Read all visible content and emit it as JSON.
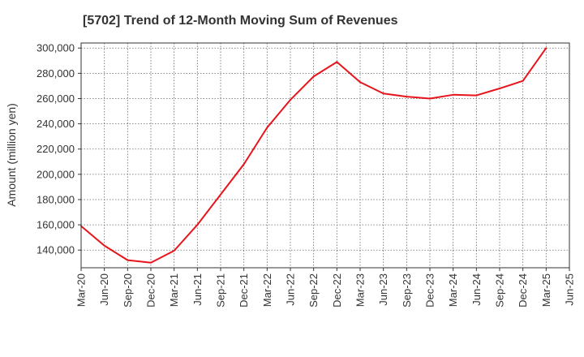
{
  "chart_data": {
    "type": "line",
    "title": "[5702]  Trend of 12-Month Moving Sum of Revenues",
    "xlabel": "",
    "ylabel": "Amount (million yen)",
    "ylim": [
      126000,
      304000
    ],
    "yticks": [
      140000,
      160000,
      180000,
      200000,
      220000,
      240000,
      260000,
      280000,
      300000
    ],
    "categories": [
      "Mar-20",
      "Jun-20",
      "Sep-20",
      "Dec-20",
      "Mar-21",
      "Jun-21",
      "Sep-21",
      "Dec-21",
      "Mar-22",
      "Jun-22",
      "Sep-22",
      "Dec-22",
      "Mar-23",
      "Jun-23",
      "Sep-23",
      "Dec-23",
      "Mar-24",
      "Jun-24",
      "Sep-24",
      "Dec-24",
      "Mar-25",
      "Jun-25"
    ],
    "grid": true,
    "series": [
      {
        "name": "",
        "color": "#e8141b",
        "values": [
          159000,
          143500,
          132000,
          130000,
          139500,
          160000,
          184000,
          208000,
          237000,
          259000,
          277500,
          289000,
          273000,
          264000,
          261500,
          260000,
          263000,
          262500,
          268000,
          274000,
          300000,
          null
        ]
      }
    ]
  }
}
